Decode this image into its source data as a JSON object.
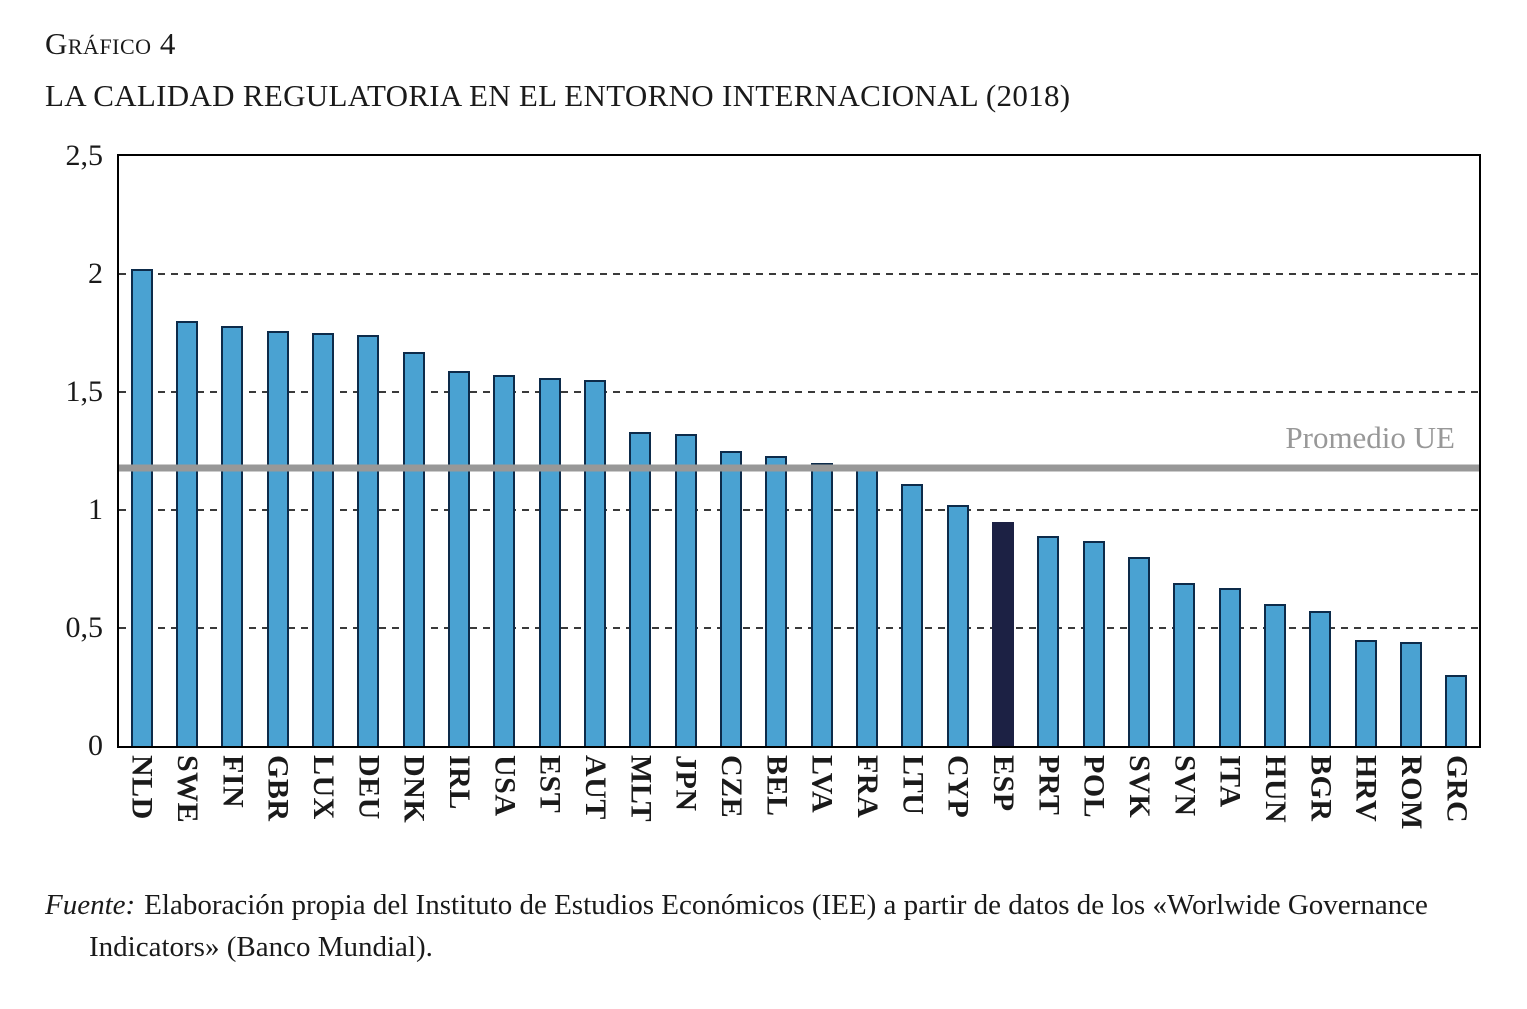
{
  "header": {
    "kicker": "Gráfico 4",
    "title": "LA CALIDAD REGULATORIA EN EL ENTORNO INTERNACIONAL (2018)"
  },
  "chart_data": {
    "type": "bar",
    "title": "La calidad regulatoria en el entorno internacional (2018)",
    "categories": [
      "NLD",
      "SWE",
      "FIN",
      "GBR",
      "LUX",
      "DEU",
      "DNK",
      "IRL",
      "USA",
      "EST",
      "AUT",
      "MLT",
      "JPN",
      "CZE",
      "BEL",
      "LVA",
      "FRA",
      "LTU",
      "CYP",
      "ESP",
      "PRT",
      "POL",
      "SVK",
      "SVN",
      "ITA",
      "HUN",
      "BGR",
      "HRV",
      "ROM",
      "GRC"
    ],
    "values": [
      2.02,
      1.8,
      1.78,
      1.76,
      1.75,
      1.74,
      1.67,
      1.59,
      1.57,
      1.56,
      1.55,
      1.33,
      1.32,
      1.25,
      1.23,
      1.2,
      1.18,
      1.11,
      1.02,
      0.95,
      0.89,
      0.87,
      0.8,
      0.69,
      0.67,
      0.6,
      0.57,
      0.45,
      0.44,
      0.3
    ],
    "highlight_category": "ESP",
    "ylim": [
      0,
      2.5
    ],
    "ytick_labels": [
      "0",
      "0,5",
      "1",
      "1,5",
      "2",
      "2,5"
    ],
    "ytick_values": [
      0,
      0.5,
      1,
      1.5,
      2,
      2.5
    ],
    "grid": "dashed-horizontal",
    "legend_position": "none",
    "average_line": {
      "label": "Promedio UE",
      "value": 1.18,
      "color": "#989898"
    },
    "bar_color": "#4aa2d2",
    "bar_border_color": "#0d2b4a",
    "highlight_color": "#1c2144"
  },
  "footer": {
    "source_label": "Fuente:",
    "source_text": "Elaboración propia del Instituto de Estudios Económicos (IEE) a partir de datos de los «Worlwide Governance Indicators» (Banco Mundial)."
  }
}
